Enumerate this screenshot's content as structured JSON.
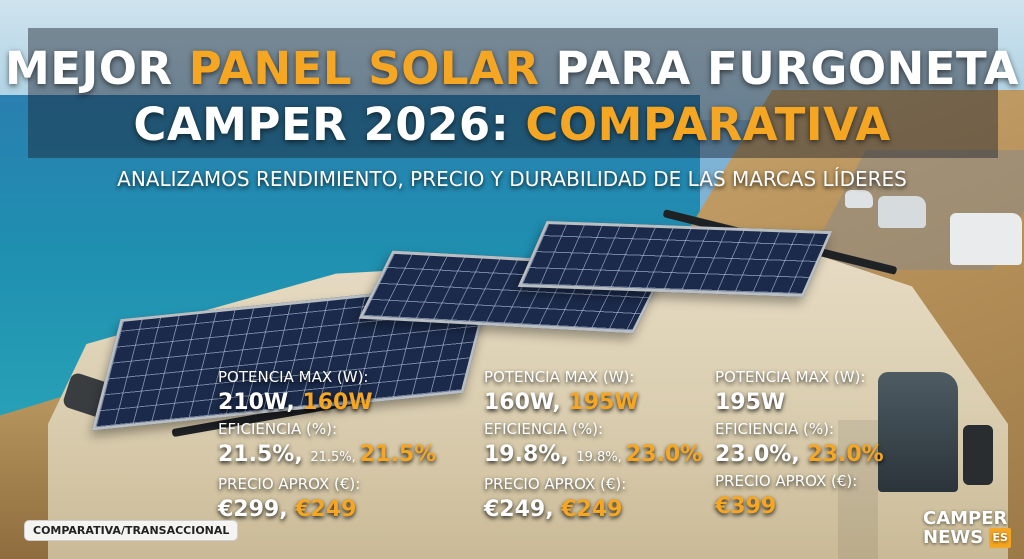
{
  "title": {
    "line1_a": "MEJOR ",
    "line1_b": "PANEL SOLAR",
    "line1_c": " PARA FURGONETA",
    "line2_a": "CAMPER 2026: ",
    "line2_b": "COMPARATIVA"
  },
  "subtitle": "ANALIZAMOS RENDIMIENTO, PRECIO Y DURABILIDAD DE LAS MARCAS LÍDERES",
  "specs": [
    {
      "potencia_label": "POTENCIA MAX (W):",
      "potencia_a": "210W, ",
      "potencia_b": "160W",
      "eficiencia_label": "EFICIENCIA (%):",
      "eficiencia_a": "21.5%, ",
      "eficiencia_small": "21.5%, ",
      "eficiencia_b": "21.5%",
      "precio_label": "PRECIO APROX (€):",
      "precio_a": "€299, ",
      "precio_b": "€249"
    },
    {
      "potencia_label": "POTENCIA MAX (W):",
      "potencia_a": "160W, ",
      "potencia_b": "195W",
      "eficiencia_label": "EFICIENCIA (%):",
      "eficiencia_a": "19.8%, ",
      "eficiencia_small": "19.8%, ",
      "eficiencia_b": "23.0%",
      "precio_label": "PRECIO APROX (€):",
      "precio_a": "€249, ",
      "precio_b": "€249"
    },
    {
      "potencia_label": "POTENCIA MAX (W):",
      "potencia_a": "195W",
      "eficiencia_label": "EFICIENCIA (%):",
      "eficiencia_a": "23.0%, ",
      "eficiencia_b": "23.0%",
      "precio_label": "PRECIO APROX (€):",
      "precio_b": "€399"
    }
  ],
  "badge": "COMPARATIVA/TRANSACCIONAL",
  "logo": {
    "line1": "CAMPER",
    "line2": "NEWS",
    "suffix": "ES"
  },
  "colors": {
    "accent": "#f5a623",
    "text": "#ffffff"
  }
}
